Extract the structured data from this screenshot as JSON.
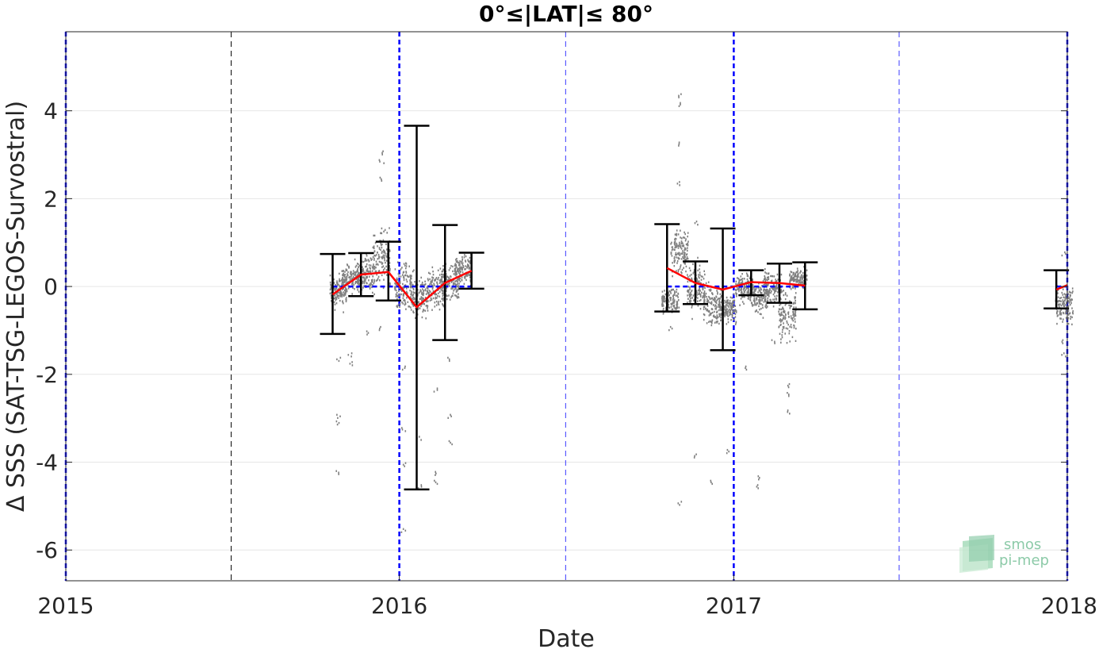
{
  "chart_data": {
    "type": "scatter",
    "title": "0°≤|LAT|≤ 80°",
    "xlabel": "Date",
    "ylabel": "Δ SSS (SAT-TSG-LEGOS-Survostral)",
    "xlim": [
      "2015-01-01",
      "2018-01-01"
    ],
    "ylim": [
      -6.7,
      5.8
    ],
    "x_ticks": [
      "2015-01-01",
      "2016-01-01",
      "2017-01-01",
      "2018-01-01"
    ],
    "x_tick_labels": [
      "2015",
      "2016",
      "2017",
      "2018"
    ],
    "y_ticks": [
      -6,
      -4,
      -2,
      0,
      2,
      4
    ],
    "y_tick_labels": [
      "-6",
      "-4",
      "-2",
      "0",
      "2",
      "4"
    ],
    "grid": "horizontal",
    "vertical_reference_lines": {
      "year_boundaries": [
        "2015-01-01",
        "2016-01-01",
        "2017-01-01",
        "2018-01-01"
      ],
      "mid_year": [
        "2015-07-01",
        "2016-07-01",
        "2017-07-01"
      ]
    },
    "series": [
      {
        "role": "monthly mean with std error bars",
        "color": "#ff0000",
        "points": [
          {
            "x": "2015-10-20",
            "mean": -0.18,
            "low": -1.08,
            "high": 0.74
          },
          {
            "x": "2015-11-20",
            "mean": 0.27,
            "low": -0.22,
            "high": 0.76
          },
          {
            "x": "2015-12-20",
            "mean": 0.33,
            "low": -0.32,
            "high": 1.02
          },
          {
            "x": "2016-01-20",
            "mean": -0.47,
            "low": -4.62,
            "high": 3.66
          },
          {
            "x": "2016-02-20",
            "mean": 0.08,
            "low": -1.22,
            "high": 1.4
          },
          {
            "x": "2016-03-20",
            "mean": 0.36,
            "low": -0.05,
            "high": 0.77
          },
          {
            "x": "2016-10-20",
            "mean": 0.42,
            "low": -0.57,
            "high": 1.42
          },
          {
            "x": "2016-11-20",
            "mean": 0.08,
            "low": -0.4,
            "high": 0.57
          },
          {
            "x": "2016-12-20",
            "mean": -0.07,
            "low": -1.45,
            "high": 1.32
          },
          {
            "x": "2017-01-20",
            "mean": 0.1,
            "low": -0.2,
            "high": 0.37
          },
          {
            "x": "2017-02-20",
            "mean": 0.08,
            "low": -0.37,
            "high": 0.52
          },
          {
            "x": "2017-03-20",
            "mean": 0.02,
            "low": -0.52,
            "high": 0.55
          },
          {
            "x": "2017-12-20",
            "mean": -0.07,
            "low": -0.5,
            "high": 0.37
          },
          {
            "x": "2018-01-01",
            "mean": 0.03,
            "low": null,
            "high": null
          }
        ]
      },
      {
        "role": "zero reference",
        "color": "#0000ff",
        "segments": [
          {
            "from": "2015-10-20",
            "to": "2016-03-20",
            "y": 0
          },
          {
            "from": "2016-10-20",
            "to": "2017-03-20",
            "y": 0
          },
          {
            "from": "2017-12-20",
            "to": "2018-01-01",
            "y": 0
          }
        ]
      },
      {
        "role": "individual differences",
        "color": "#808080",
        "clusters": [
          {
            "x": "2015-10-26",
            "center": -0.1,
            "spread": 0.7,
            "outliers": [
              -4.18,
              -3.05,
              -2.9,
              -1.6
            ]
          },
          {
            "x": "2015-11-08",
            "center": 0.2,
            "spread": 0.6,
            "outliers": [
              -1.5,
              -1.7
            ]
          },
          {
            "x": "2015-11-25",
            "center": 0.3,
            "spread": 0.8,
            "outliers": [
              -1.0
            ]
          },
          {
            "x": "2015-12-12",
            "center": 0.6,
            "spread": 1.2,
            "outliers": [
              3.1,
              2.9,
              2.5,
              -0.9
            ]
          },
          {
            "x": "2016-01-05",
            "center": 0.0,
            "spread": 1.0,
            "outliers": [
              -3.2,
              -4.0,
              -5.5,
              -1.8
            ]
          },
          {
            "x": "2016-01-22",
            "center": -0.2,
            "spread": 0.8,
            "outliers": [
              -3.4,
              -4.5
            ]
          },
          {
            "x": "2016-02-10",
            "center": 0.0,
            "spread": 1.0,
            "outliers": [
              -2.3,
              -4.2,
              -4.4
            ]
          },
          {
            "x": "2016-02-25",
            "center": 0.1,
            "spread": 0.8,
            "outliers": [
              -1.6,
              -2.9,
              -3.5
            ]
          },
          {
            "x": "2016-03-10",
            "center": 0.4,
            "spread": 0.6,
            "outliers": []
          },
          {
            "x": "2016-10-23",
            "center": -0.3,
            "spread": 0.5,
            "outliers": [
              -0.9
            ]
          },
          {
            "x": "2016-11-02",
            "center": 0.8,
            "spread": 1.0,
            "outliers": [
              4.4,
              4.2,
              3.3,
              2.4,
              -4.88
            ]
          },
          {
            "x": "2016-11-20",
            "center": 0.0,
            "spread": 0.9,
            "outliers": [
              1.5,
              -3.8
            ]
          },
          {
            "x": "2016-12-08",
            "center": -0.4,
            "spread": 0.9,
            "outliers": [
              -4.4
            ]
          },
          {
            "x": "2016-12-25",
            "center": -0.5,
            "spread": 0.6,
            "outliers": [
              -3.7
            ]
          },
          {
            "x": "2017-01-12",
            "center": 0.0,
            "spread": 0.6,
            "outliers": [
              -1.8
            ]
          },
          {
            "x": "2017-01-28",
            "center": -0.2,
            "spread": 0.7,
            "outliers": [
              -4.3,
              -4.5
            ]
          },
          {
            "x": "2017-02-12",
            "center": 0.0,
            "spread": 0.7,
            "outliers": [
              -1.2
            ]
          },
          {
            "x": "2017-02-28",
            "center": -0.6,
            "spread": 1.2,
            "outliers": [
              -2.4,
              -2.8,
              -2.2
            ]
          },
          {
            "x": "2017-03-12",
            "center": 0.2,
            "spread": 0.4,
            "outliers": []
          },
          {
            "x": "2017-12-28",
            "center": -0.4,
            "spread": 0.8,
            "outliers": [
              -1.5,
              -1.2,
              0.8
            ]
          }
        ]
      }
    ]
  },
  "logo": {
    "line1": "smos",
    "line2": "pi-mep",
    "color": "#8ccaa8"
  }
}
